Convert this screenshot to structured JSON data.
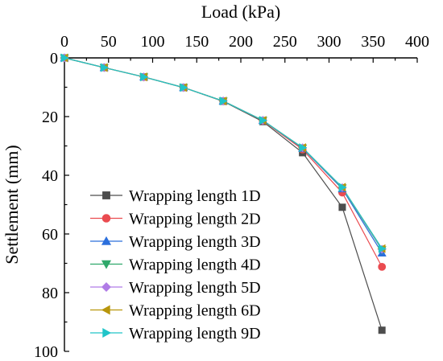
{
  "chart_data": {
    "type": "line",
    "xlabel": "Load (kPa)",
    "ylabel": "Settlement (mm)",
    "xlim": [
      0,
      400
    ],
    "ylim": [
      0,
      100
    ],
    "y_inverted": true,
    "x_axis_position": "top",
    "xticks": [
      "0",
      "50",
      "100",
      "150",
      "200",
      "250",
      "300",
      "350",
      "400"
    ],
    "yticks": [
      "0",
      "20",
      "40",
      "60",
      "80",
      "100"
    ],
    "grid": false,
    "legend_position": "bottom-left",
    "x": [
      0,
      45,
      90,
      135,
      180,
      225,
      270,
      315,
      360
    ],
    "series": [
      {
        "name": "Wrapping length 1D",
        "color": "#4d4d4d",
        "marker": "square",
        "values": [
          0,
          3.3,
          6.5,
          10.1,
          14.8,
          21.7,
          32.3,
          50.9,
          92.8
        ]
      },
      {
        "name": "Wrapping length 2D",
        "color": "#ea4b50",
        "marker": "circle",
        "values": [
          0,
          3.3,
          6.5,
          10.1,
          14.7,
          21.4,
          31.2,
          45.9,
          71.2
        ]
      },
      {
        "name": "Wrapping length 3D",
        "color": "#2b6fdc",
        "marker": "triangle-up",
        "values": [
          0,
          3.3,
          6.5,
          10.1,
          14.7,
          21.3,
          30.8,
          44.6,
          66.5
        ]
      },
      {
        "name": "Wrapping length 4D",
        "color": "#2fa86a",
        "marker": "triangle-down",
        "values": [
          0,
          3.3,
          6.5,
          10.1,
          14.7,
          21.3,
          30.7,
          44.3,
          65.4
        ]
      },
      {
        "name": "Wrapping length 5D",
        "color": "#b07ce6",
        "marker": "diamond",
        "values": [
          0,
          3.3,
          6.5,
          10.1,
          14.7,
          21.3,
          30.6,
          44.2,
          65.2
        ]
      },
      {
        "name": "Wrapping length 6D",
        "color": "#b8960c",
        "marker": "triangle-left",
        "values": [
          0,
          3.3,
          6.5,
          10.1,
          14.7,
          21.3,
          30.6,
          44.1,
          65.0
        ]
      },
      {
        "name": "Wrapping length 9D",
        "color": "#20c4c8",
        "marker": "triangle-right",
        "values": [
          0,
          3.3,
          6.5,
          10.1,
          14.7,
          21.3,
          30.6,
          44.1,
          65.0
        ]
      }
    ]
  }
}
